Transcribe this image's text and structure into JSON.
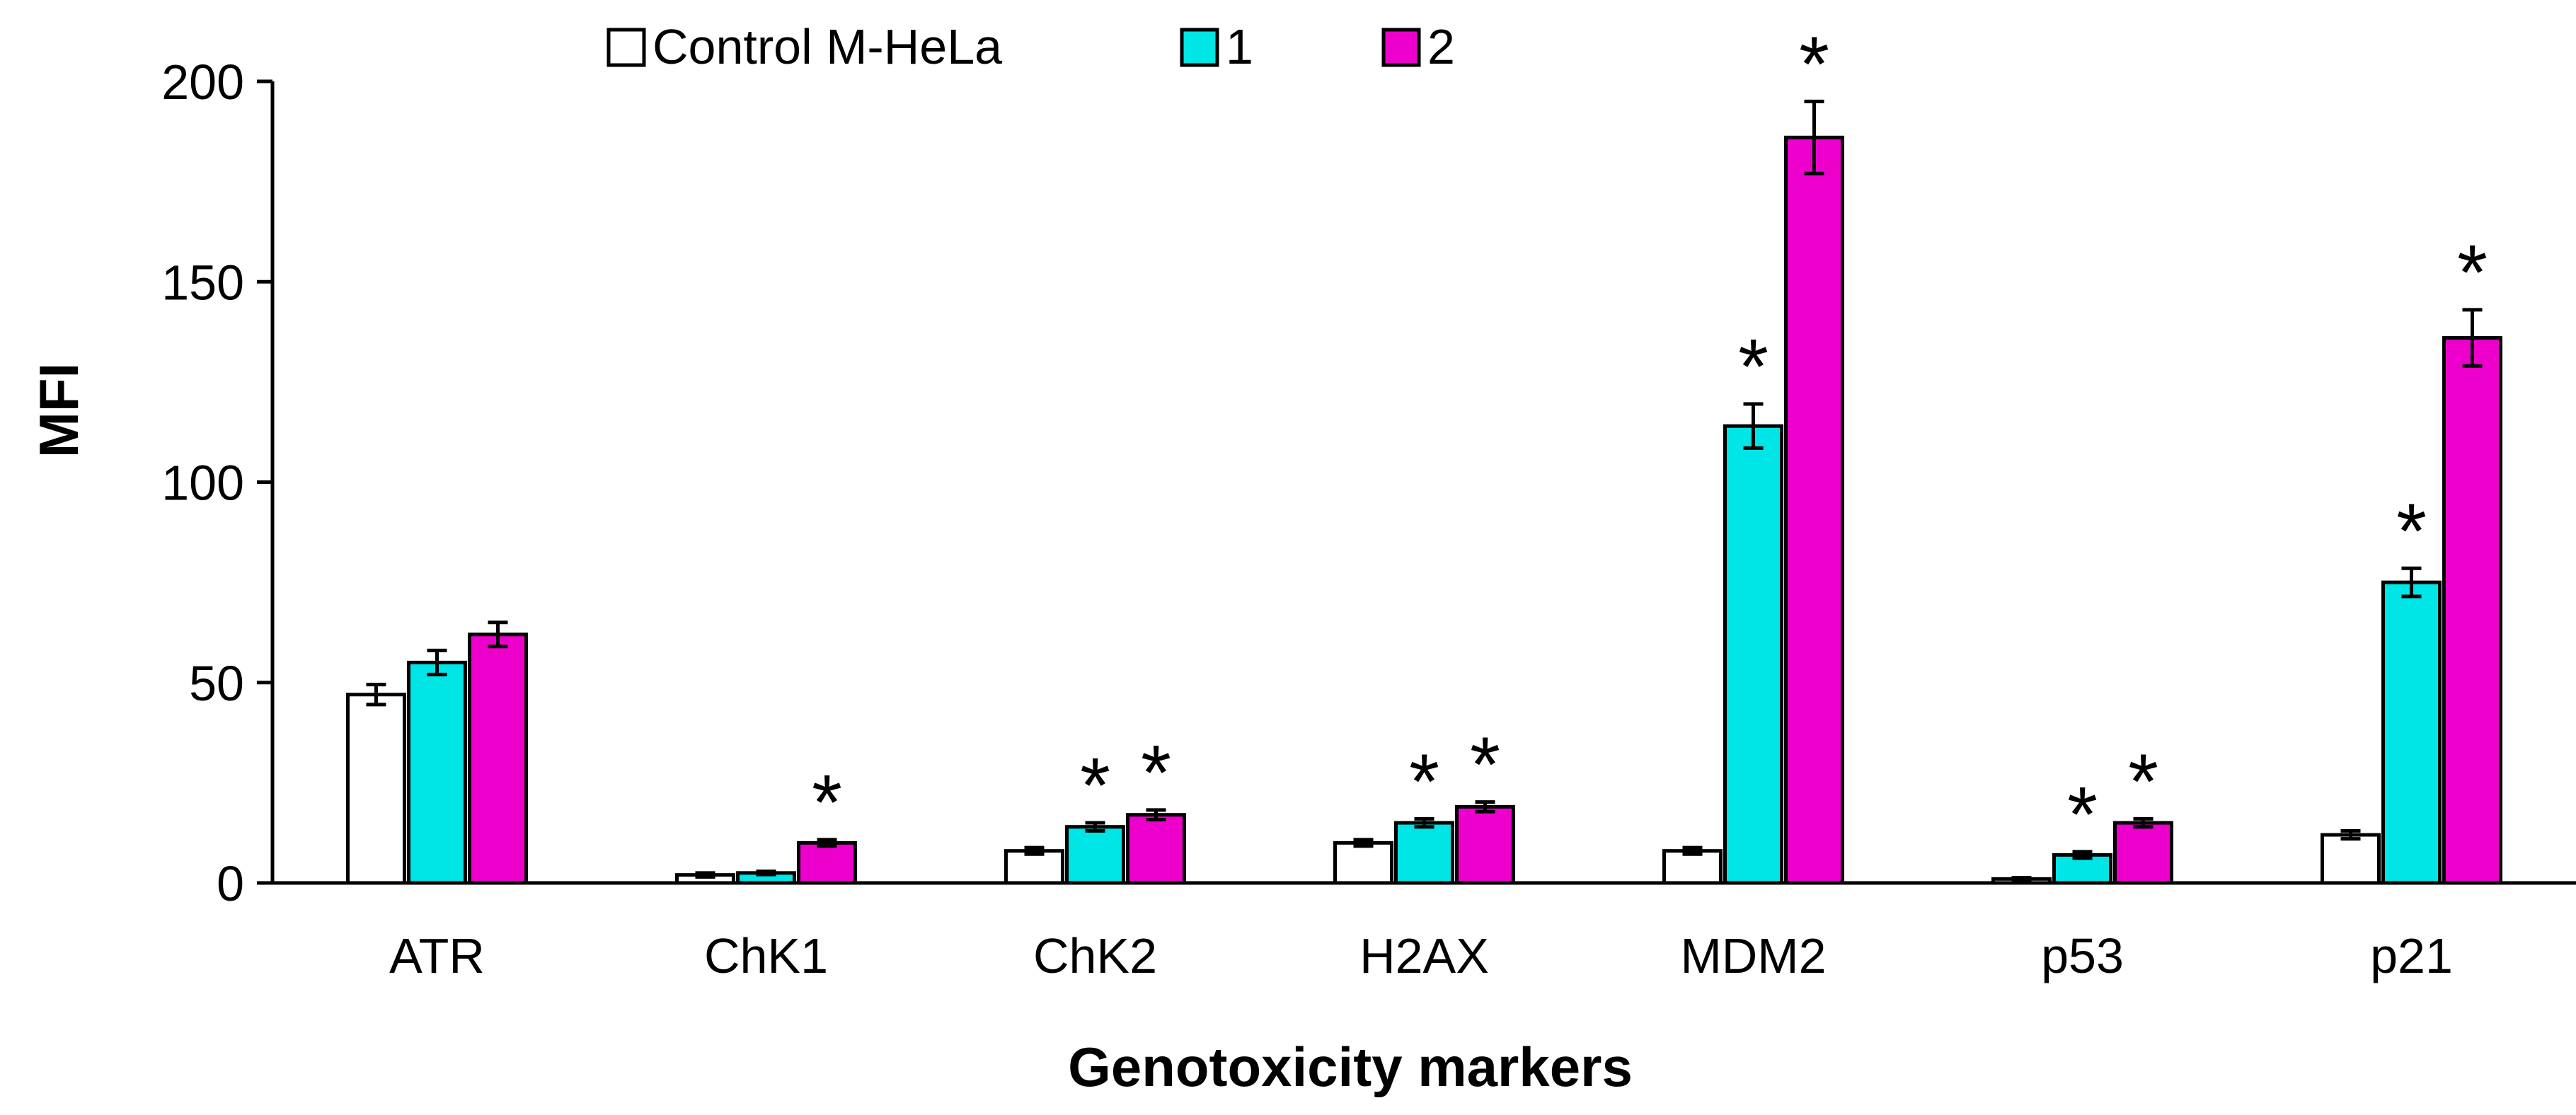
{
  "chart_data": {
    "type": "bar",
    "title": "",
    "xlabel": "Genotoxicity markers",
    "ylabel": "MFI",
    "ylim": [
      0,
      200
    ],
    "yticks": [
      0,
      50,
      100,
      150,
      200
    ],
    "categories": [
      "ATR",
      "ChK1",
      "ChK2",
      "H2AX",
      "MDM2",
      "p53",
      "p21"
    ],
    "series": [
      {
        "name": "Control M-HeLa",
        "color": "#ffffff",
        "values": [
          47,
          2,
          8,
          10,
          8,
          1,
          12
        ],
        "errors": [
          2.5,
          0.5,
          0.8,
          0.8,
          0.8,
          0.3,
          1.0
        ],
        "significant": [
          false,
          false,
          false,
          false,
          false,
          false,
          false
        ]
      },
      {
        "name": "1",
        "color": "#00e5e5",
        "values": [
          55,
          2.5,
          14,
          15,
          114,
          7,
          75
        ],
        "errors": [
          3,
          0.4,
          1.0,
          1.0,
          5.5,
          0.8,
          3.5
        ],
        "significant": [
          false,
          false,
          true,
          true,
          true,
          true,
          true
        ]
      },
      {
        "name": "2",
        "color": "#ee00cc",
        "values": [
          62,
          10,
          17,
          19,
          186,
          15,
          136
        ],
        "errors": [
          3,
          0.8,
          1.2,
          1.2,
          9,
          1.0,
          7
        ],
        "significant": [
          false,
          true,
          true,
          true,
          true,
          true,
          true
        ]
      }
    ],
    "significance_marker": "*",
    "legend_position": "top-center",
    "grid": false
  }
}
